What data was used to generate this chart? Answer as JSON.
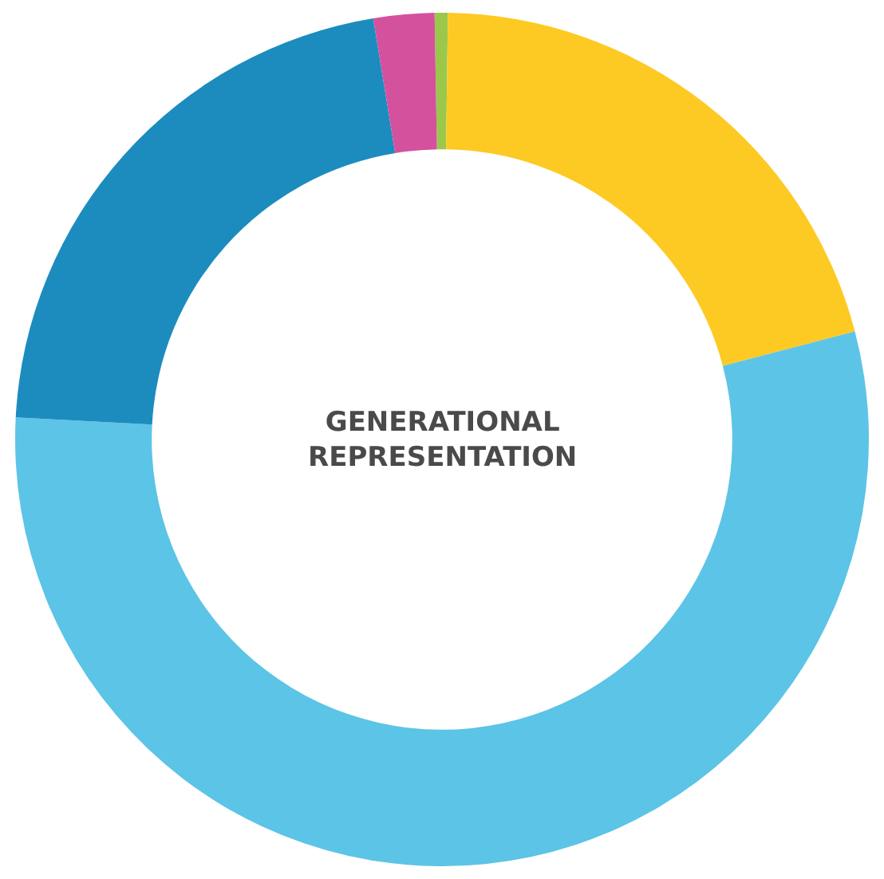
{
  "chart_data": {
    "type": "donut",
    "title": "GENERATIONAL REPRESENTATION",
    "categories": [
      null,
      null,
      null,
      null,
      null
    ],
    "values": [
      0.5,
      20.7,
      54.9,
      21.6,
      2.3
    ],
    "colors": [
      "#9bc84a",
      "#fdca23",
      "#5cc4e6",
      "#1c8cbf",
      "#d4519e"
    ]
  }
}
